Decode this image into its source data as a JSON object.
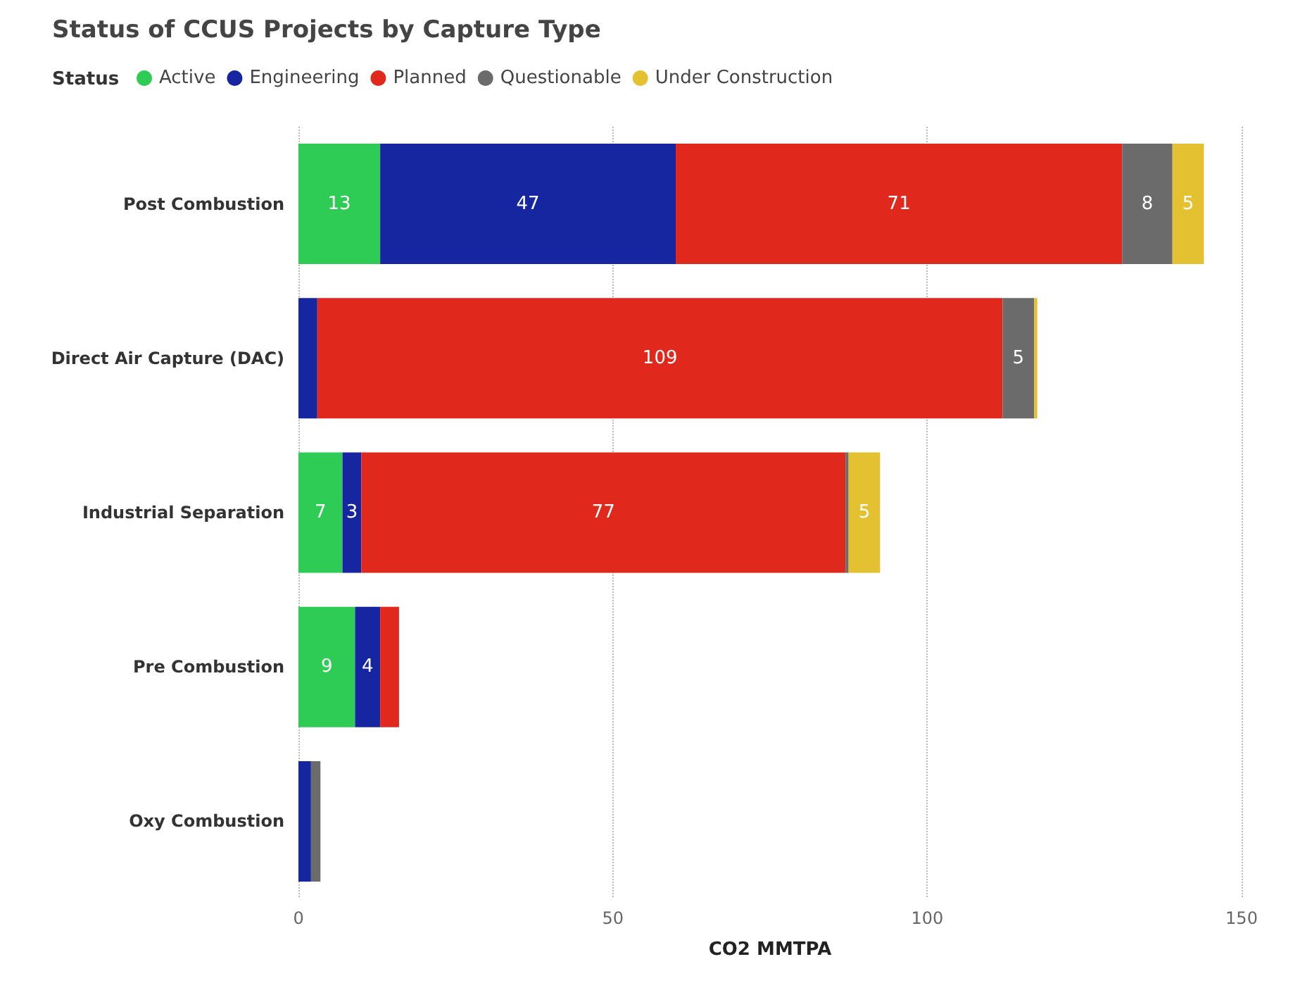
{
  "chart_data": {
    "type": "bar",
    "orientation": "horizontal",
    "stacked": true,
    "title": "Status of CCUS Projects by Capture Type",
    "legend_title": "Status",
    "legend": "top left",
    "xlabel": "CO2 MMTPA",
    "categories": [
      "Post Combustion",
      "Direct Air Capture (DAC)",
      "Industrial Separation",
      "Pre Combustion",
      "Oxy Combustion"
    ],
    "series": [
      {
        "name": "Active",
        "color": "#2ecc55",
        "values": [
          13,
          0,
          7,
          9,
          0
        ],
        "value_labels": [
          "13",
          null,
          "7",
          "9",
          null
        ]
      },
      {
        "name": "Engineering",
        "color": "#1526a0",
        "values": [
          47,
          3,
          3,
          4,
          2
        ],
        "value_labels": [
          "47",
          null,
          "3",
          "4",
          null
        ]
      },
      {
        "name": "Planned",
        "color": "#e0291c",
        "values": [
          71,
          109,
          77,
          3,
          0
        ],
        "value_labels": [
          "71",
          "109",
          "77",
          null,
          null
        ]
      },
      {
        "name": "Questionable",
        "color": "#6b6b6b",
        "values": [
          8,
          5,
          0.5,
          0,
          1.5
        ],
        "value_labels": [
          "8",
          "5",
          null,
          null,
          null
        ]
      },
      {
        "name": "Under Construction",
        "color": "#e3c130",
        "values": [
          5,
          0.5,
          5,
          0,
          0
        ],
        "value_labels": [
          "5",
          null,
          "5",
          null,
          null
        ]
      }
    ],
    "xlim": [
      0,
      150
    ],
    "xticks": [
      0,
      50,
      100,
      150
    ],
    "grid": "x"
  }
}
